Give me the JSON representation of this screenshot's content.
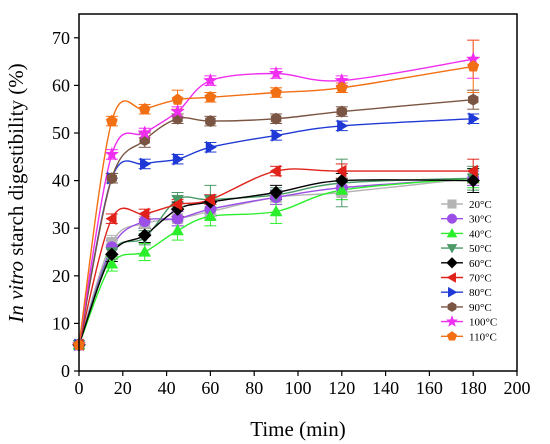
{
  "chart_data": {
    "type": "line",
    "title": "",
    "xlabel": "Time (min)",
    "ylabel_italic": "In vitro",
    "ylabel_rest": " starch digestibility (%)",
    "xlim": [
      0,
      200
    ],
    "ylim": [
      0,
      75
    ],
    "xticks": [
      0,
      20,
      40,
      60,
      80,
      100,
      120,
      140,
      160,
      180,
      200
    ],
    "yticks": [
      0,
      10,
      20,
      30,
      40,
      50,
      60,
      70
    ],
    "x": [
      0,
      15,
      30,
      45,
      60,
      90,
      120,
      180
    ],
    "legend_position": "bottom-right",
    "series": [
      {
        "name": "20°C",
        "color": "#b4b4b4",
        "marker": "square",
        "values": [
          5.5,
          27.0,
          31.0,
          32.0,
          33.5,
          36.5,
          37.5,
          40.5
        ],
        "errors": [
          0,
          1.5,
          1.5,
          1.5,
          1.5,
          1.5,
          1.5,
          1.5
        ]
      },
      {
        "name": "30°C",
        "color": "#9b4fe6",
        "marker": "circle",
        "values": [
          5.5,
          26.0,
          31.5,
          32.0,
          34.0,
          36.5,
          38.5,
          40.5
        ],
        "errors": [
          0,
          1.5,
          1.5,
          1.5,
          1.5,
          1.5,
          1.5,
          1.5
        ]
      },
      {
        "name": "40°C",
        "color": "#2bef2b",
        "marker": "triangle-up",
        "values": [
          5.5,
          22.5,
          25.0,
          29.5,
          32.5,
          33.5,
          38.0,
          40.5
        ],
        "errors": [
          0,
          1.5,
          1.8,
          2.0,
          2.0,
          2.5,
          2.0,
          2.0
        ]
      },
      {
        "name": "50°C",
        "color": "#4a9a68",
        "marker": "triangle-down",
        "values": [
          5.5,
          25.0,
          28.0,
          36.0,
          36.0,
          37.0,
          39.5,
          40.5
        ],
        "errors": [
          0,
          1.5,
          1.5,
          1.5,
          3.0,
          1.5,
          5.0,
          2.5
        ]
      },
      {
        "name": "60°C",
        "color": "#000000",
        "marker": "diamond",
        "values": [
          5.5,
          24.5,
          28.5,
          34.0,
          35.5,
          37.5,
          40.0,
          40.0
        ],
        "errors": [
          0,
          1.5,
          1.5,
          1.5,
          1.5,
          1.5,
          1.5,
          2.5
        ]
      },
      {
        "name": "70°C",
        "color": "#e0221b",
        "marker": "triangle-left",
        "values": [
          5.5,
          32.0,
          33.0,
          35.0,
          36.0,
          42.0,
          42.0,
          42.0
        ],
        "errors": [
          0,
          1.0,
          1.0,
          1.0,
          1.0,
          1.0,
          1.5,
          2.5
        ]
      },
      {
        "name": "80°C",
        "color": "#1f39d6",
        "marker": "triangle-right",
        "values": [
          5.5,
          40.5,
          43.5,
          44.5,
          47.0,
          49.5,
          51.5,
          53.0
        ],
        "errors": [
          0,
          1.0,
          1.0,
          1.0,
          1.0,
          1.0,
          1.0,
          1.0
        ]
      },
      {
        "name": "90°C",
        "color": "#7b5543",
        "marker": "hexagon",
        "values": [
          5.5,
          40.5,
          48.5,
          53.0,
          52.5,
          53.0,
          54.5,
          57.0
        ],
        "errors": [
          0,
          1.0,
          1.5,
          1.0,
          1.0,
          1.0,
          1.0,
          2.0
        ]
      },
      {
        "name": "100°C",
        "color": "#f02ef0",
        "marker": "star",
        "values": [
          5.5,
          45.5,
          50.0,
          54.5,
          61.0,
          62.5,
          61.0,
          65.5
        ],
        "errors": [
          0,
          1.0,
          1.0,
          1.0,
          1.0,
          1.0,
          1.0,
          4.0
        ]
      },
      {
        "name": "110°C",
        "color": "#f36f14",
        "marker": "pentagon",
        "values": [
          5.5,
          52.5,
          55.0,
          57.0,
          57.5,
          58.5,
          59.5,
          64.0
        ],
        "errors": [
          0,
          1.0,
          1.0,
          2.0,
          1.0,
          1.0,
          1.0,
          5.5
        ]
      }
    ]
  }
}
